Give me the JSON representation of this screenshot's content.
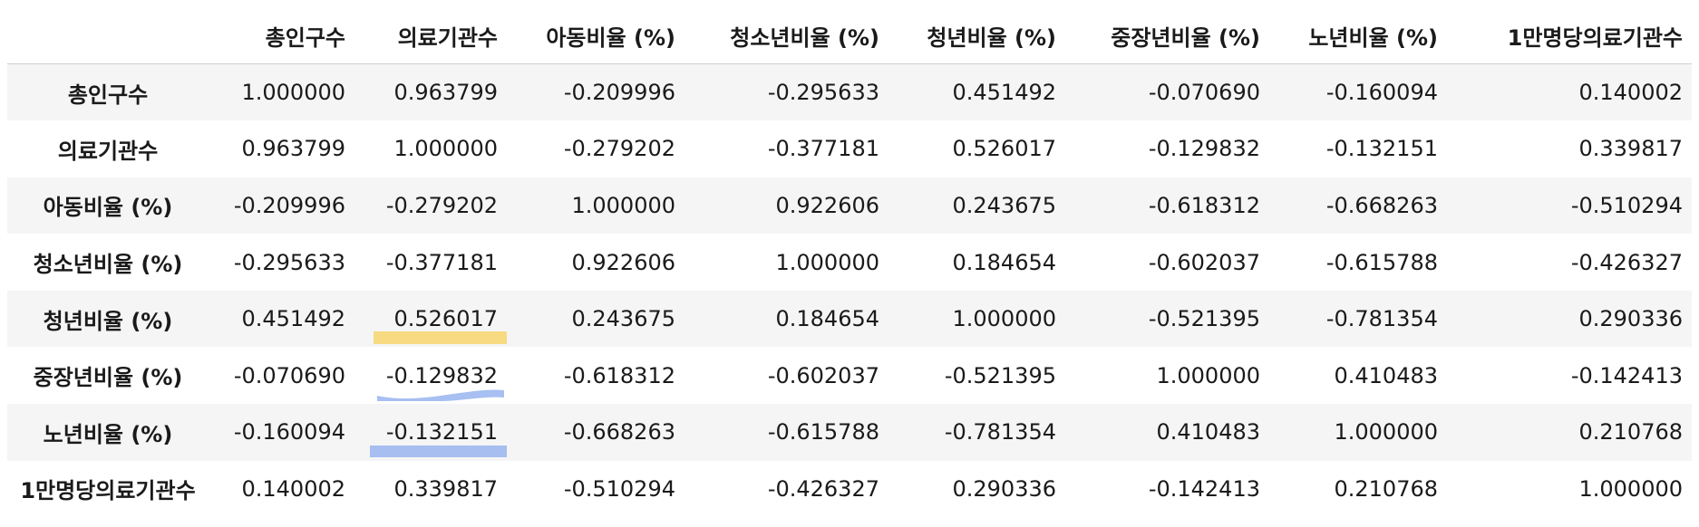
{
  "table": {
    "columns": [
      "총인구수",
      "의료기관수",
      "아동비율 (%)",
      "청소년비율 (%)",
      "청년비율 (%)",
      "중장년비율 (%)",
      "노년비율 (%)",
      "1만명당의료기관수"
    ],
    "rows": [
      {
        "label": "총인구수",
        "values": [
          "1.000000",
          "0.963799",
          "-0.209996",
          "-0.295633",
          "0.451492",
          "-0.070690",
          "-0.160094",
          "0.140002"
        ]
      },
      {
        "label": "의료기관수",
        "values": [
          "0.963799",
          "1.000000",
          "-0.279202",
          "-0.377181",
          "0.526017",
          "-0.129832",
          "-0.132151",
          "0.339817"
        ]
      },
      {
        "label": "아동비율 (%)",
        "values": [
          "-0.209996",
          "-0.279202",
          "1.000000",
          "0.922606",
          "0.243675",
          "-0.618312",
          "-0.668263",
          "-0.510294"
        ]
      },
      {
        "label": "청소년비율 (%)",
        "values": [
          "-0.295633",
          "-0.377181",
          "0.922606",
          "1.000000",
          "0.184654",
          "-0.602037",
          "-0.615788",
          "-0.426327"
        ]
      },
      {
        "label": "청년비율 (%)",
        "values": [
          "0.451492",
          "0.526017",
          "0.243675",
          "0.184654",
          "1.000000",
          "-0.521395",
          "-0.781354",
          "0.290336"
        ]
      },
      {
        "label": "중장년비율 (%)",
        "values": [
          "-0.070690",
          "-0.129832",
          "-0.618312",
          "-0.602037",
          "-0.521395",
          "1.000000",
          "0.410483",
          "-0.142413"
        ]
      },
      {
        "label": "노년비율 (%)",
        "values": [
          "-0.160094",
          "-0.132151",
          "-0.668263",
          "-0.615788",
          "-0.781354",
          "0.410483",
          "1.000000",
          "0.210768"
        ]
      },
      {
        "label": "1만명당의료기관수",
        "values": [
          "0.140002",
          "0.339817",
          "-0.510294",
          "-0.426327",
          "0.290336",
          "-0.142413",
          "0.210768",
          "1.000000"
        ]
      }
    ]
  },
  "highlights": {
    "yellow": "#f7d774",
    "blue": "#9db8f0"
  }
}
